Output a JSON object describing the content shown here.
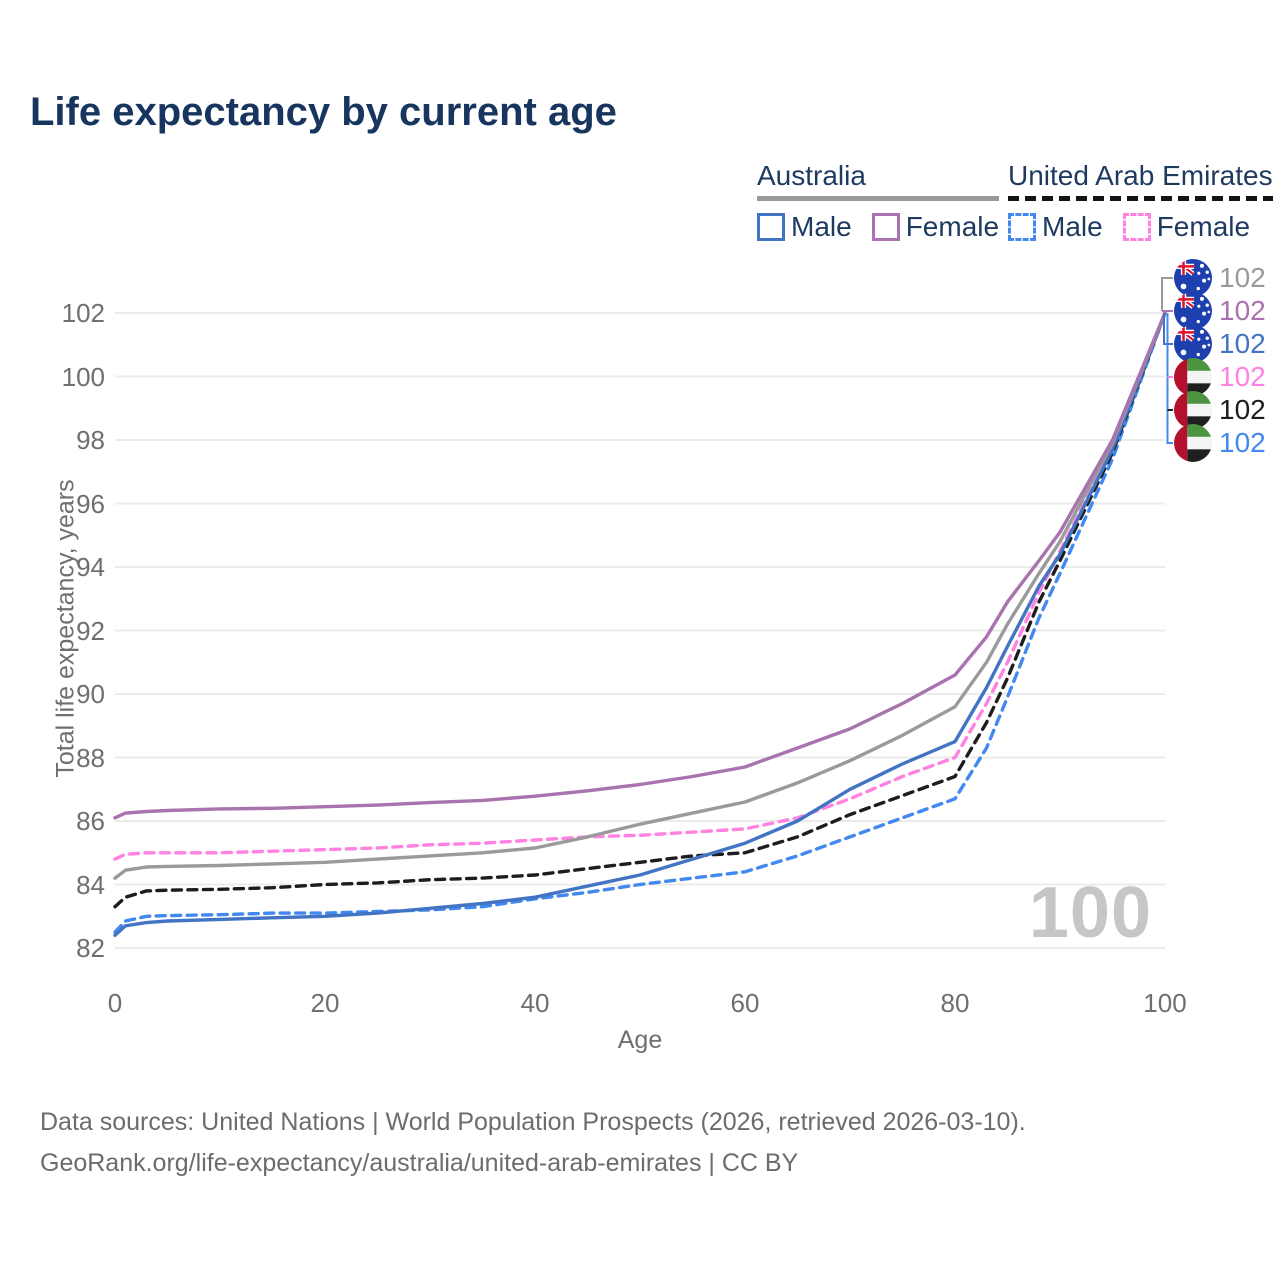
{
  "title": "Life expectancy by current age",
  "legend": {
    "groups": [
      {
        "label": "Australia",
        "underline": "solid",
        "items": [
          {
            "label": "Male",
            "color": "#4374c4",
            "dash": false
          },
          {
            "label": "Female",
            "color": "#a873ae",
            "dash": false
          }
        ]
      },
      {
        "label": "United Arab Emirates",
        "underline": "dashed",
        "items": [
          {
            "label": "Male",
            "color": "#4189f0",
            "dash": true
          },
          {
            "label": "Female",
            "color": "#ff82e2",
            "dash": true
          }
        ]
      }
    ]
  },
  "watermark": "100",
  "end_labels": [
    {
      "flag": "australia",
      "value": "102",
      "color": "#9a9a9a",
      "series": "Australia Both sexes"
    },
    {
      "flag": "australia",
      "value": "102",
      "color": "#a873ae",
      "series": "Australia Female"
    },
    {
      "flag": "australia",
      "value": "102",
      "color": "#4374c4",
      "series": "Australia Male"
    },
    {
      "flag": "uae",
      "value": "102",
      "color": "#ff82e2",
      "series": "United Arab Emirates Female"
    },
    {
      "flag": "uae",
      "value": "102",
      "color": "#1d1d1d",
      "series": "United Arab Emirates Both sexes"
    },
    {
      "flag": "uae",
      "value": "102",
      "color": "#4189f0",
      "series": "United Arab Emirates Male"
    }
  ],
  "footer": {
    "line1": "Data sources: United Nations | World Population Prospects (2026, retrieved 2026-03-10).",
    "line2": "GeoRank.org/life-expectancy/australia/united-arab-emirates | CC BY"
  },
  "chart_data": {
    "type": "line",
    "title": "Life expectancy by current age",
    "xlabel": "Age",
    "ylabel": "Total life expectancy, years",
    "xlim": [
      0,
      100
    ],
    "ylim": [
      82,
      102
    ],
    "x_ticks": [
      0,
      20,
      40,
      60,
      80,
      100
    ],
    "y_ticks": [
      82,
      84,
      86,
      88,
      90,
      92,
      94,
      96,
      98,
      100,
      102
    ],
    "grid": "horizontal-only",
    "legend_position": "top-right",
    "series": [
      {
        "name": "United Arab Emirates Male",
        "color": "#4189f0",
        "style": "dashed",
        "points": [
          [
            0,
            82.5
          ],
          [
            1,
            82.85
          ],
          [
            3,
            83.0
          ],
          [
            5,
            83.02
          ],
          [
            10,
            83.05
          ],
          [
            15,
            83.1
          ],
          [
            20,
            83.1
          ],
          [
            25,
            83.15
          ],
          [
            30,
            83.2
          ],
          [
            35,
            83.3
          ],
          [
            40,
            83.55
          ],
          [
            45,
            83.75
          ],
          [
            50,
            84.0
          ],
          [
            55,
            84.2
          ],
          [
            60,
            84.4
          ],
          [
            65,
            84.9
          ],
          [
            70,
            85.5
          ],
          [
            75,
            86.1
          ],
          [
            80,
            86.7
          ],
          [
            83,
            88.3
          ],
          [
            85,
            89.9
          ],
          [
            88,
            92.4
          ],
          [
            90,
            93.8
          ],
          [
            95,
            97.4
          ],
          [
            100,
            102
          ]
        ]
      },
      {
        "name": "United Arab Emirates Both sexes",
        "color": "#1d1d1d",
        "style": "dashed",
        "points": [
          [
            0,
            83.3
          ],
          [
            1,
            83.6
          ],
          [
            3,
            83.8
          ],
          [
            5,
            83.82
          ],
          [
            10,
            83.85
          ],
          [
            15,
            83.9
          ],
          [
            20,
            84.0
          ],
          [
            25,
            84.05
          ],
          [
            30,
            84.15
          ],
          [
            35,
            84.2
          ],
          [
            40,
            84.3
          ],
          [
            45,
            84.5
          ],
          [
            50,
            84.7
          ],
          [
            55,
            84.9
          ],
          [
            60,
            85.0
          ],
          [
            65,
            85.5
          ],
          [
            70,
            86.2
          ],
          [
            75,
            86.8
          ],
          [
            80,
            87.4
          ],
          [
            83,
            89.1
          ],
          [
            85,
            90.5
          ],
          [
            88,
            92.9
          ],
          [
            90,
            94.2
          ],
          [
            95,
            97.6
          ],
          [
            100,
            102
          ]
        ]
      },
      {
        "name": "United Arab Emirates Female",
        "color": "#ff82e2",
        "style": "dashed",
        "points": [
          [
            0,
            84.8
          ],
          [
            1,
            84.95
          ],
          [
            3,
            85.0
          ],
          [
            5,
            85.0
          ],
          [
            10,
            85.0
          ],
          [
            15,
            85.05
          ],
          [
            20,
            85.1
          ],
          [
            25,
            85.15
          ],
          [
            30,
            85.25
          ],
          [
            35,
            85.3
          ],
          [
            40,
            85.4
          ],
          [
            45,
            85.5
          ],
          [
            50,
            85.55
          ],
          [
            55,
            85.65
          ],
          [
            60,
            85.75
          ],
          [
            65,
            86.1
          ],
          [
            70,
            86.7
          ],
          [
            75,
            87.4
          ],
          [
            80,
            88.0
          ],
          [
            83,
            89.7
          ],
          [
            85,
            91.0
          ],
          [
            88,
            93.2
          ],
          [
            90,
            94.5
          ],
          [
            95,
            97.8
          ],
          [
            100,
            102
          ]
        ]
      },
      {
        "name": "Australia Male",
        "color": "#4374c4",
        "style": "solid",
        "points": [
          [
            0,
            82.4
          ],
          [
            1,
            82.7
          ],
          [
            3,
            82.8
          ],
          [
            5,
            82.85
          ],
          [
            10,
            82.9
          ],
          [
            15,
            82.95
          ],
          [
            20,
            83.0
          ],
          [
            25,
            83.1
          ],
          [
            30,
            83.25
          ],
          [
            35,
            83.4
          ],
          [
            40,
            83.6
          ],
          [
            45,
            83.95
          ],
          [
            50,
            84.3
          ],
          [
            55,
            84.8
          ],
          [
            60,
            85.3
          ],
          [
            65,
            86.0
          ],
          [
            70,
            87.0
          ],
          [
            75,
            87.8
          ],
          [
            80,
            88.5
          ],
          [
            83,
            90.2
          ],
          [
            85,
            91.5
          ],
          [
            88,
            93.4
          ],
          [
            90,
            94.4
          ],
          [
            95,
            97.7
          ],
          [
            100,
            102
          ]
        ]
      },
      {
        "name": "Australia Both sexes",
        "color": "#9a9a9a",
        "style": "solid",
        "points": [
          [
            0,
            84.2
          ],
          [
            1,
            84.45
          ],
          [
            3,
            84.55
          ],
          [
            5,
            84.57
          ],
          [
            10,
            84.6
          ],
          [
            15,
            84.65
          ],
          [
            20,
            84.7
          ],
          [
            25,
            84.8
          ],
          [
            30,
            84.9
          ],
          [
            35,
            85.0
          ],
          [
            40,
            85.15
          ],
          [
            45,
            85.5
          ],
          [
            50,
            85.9
          ],
          [
            55,
            86.25
          ],
          [
            60,
            86.6
          ],
          [
            65,
            87.2
          ],
          [
            70,
            87.9
          ],
          [
            75,
            88.7
          ],
          [
            80,
            89.6
          ],
          [
            83,
            91.0
          ],
          [
            85,
            92.2
          ],
          [
            88,
            93.8
          ],
          [
            90,
            94.8
          ],
          [
            95,
            97.9
          ],
          [
            100,
            102
          ]
        ]
      },
      {
        "name": "Australia Female",
        "color": "#a873ae",
        "style": "solid",
        "points": [
          [
            0,
            86.1
          ],
          [
            1,
            86.25
          ],
          [
            3,
            86.3
          ],
          [
            5,
            86.33
          ],
          [
            10,
            86.38
          ],
          [
            15,
            86.4
          ],
          [
            20,
            86.45
          ],
          [
            25,
            86.5
          ],
          [
            30,
            86.58
          ],
          [
            35,
            86.65
          ],
          [
            40,
            86.78
          ],
          [
            45,
            86.95
          ],
          [
            50,
            87.15
          ],
          [
            55,
            87.4
          ],
          [
            60,
            87.7
          ],
          [
            65,
            88.3
          ],
          [
            70,
            88.9
          ],
          [
            75,
            89.7
          ],
          [
            80,
            90.6
          ],
          [
            83,
            91.8
          ],
          [
            85,
            92.9
          ],
          [
            88,
            94.2
          ],
          [
            90,
            95.1
          ],
          [
            95,
            98.0
          ],
          [
            100,
            102
          ]
        ]
      }
    ]
  }
}
